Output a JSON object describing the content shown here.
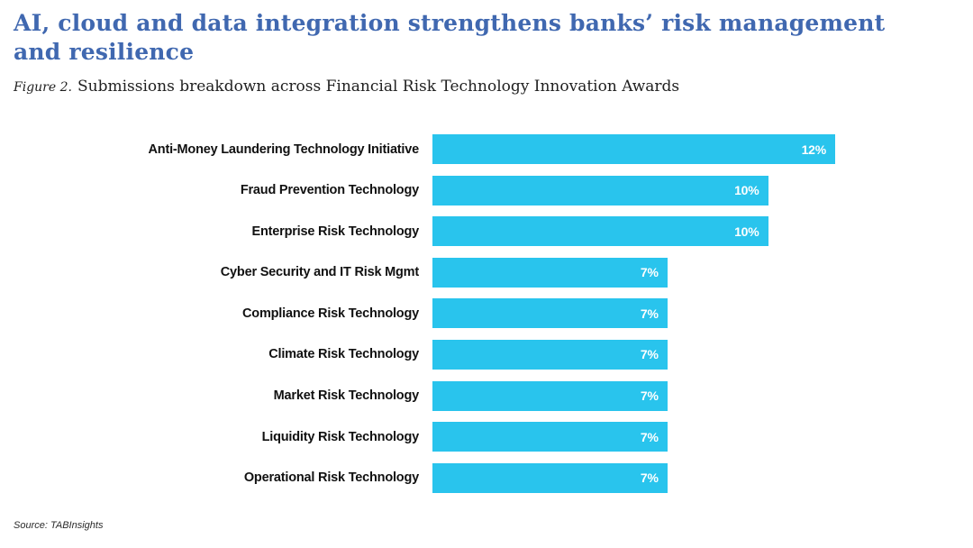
{
  "header": {
    "title_lines": [
      "AI, cloud and data integration strengthens banks’ risk management",
      "and resilience"
    ],
    "figure_label": "Figure 2.",
    "subtitle": "Submissions breakdown across Financial Risk Technology Innovation Awards"
  },
  "chart_data": {
    "type": "bar",
    "orientation": "horizontal",
    "title": "Submissions breakdown across Financial Risk Technology Innovation Awards",
    "categories": [
      "Anti-Money Laundering Technology Initiative",
      "Fraud Prevention Technology",
      "Enterprise Risk Technology",
      "Cyber Security and IT Risk Mgmt",
      "Compliance Risk Technology",
      "Climate Risk Technology",
      "Market Risk Technology",
      "Liquidity Risk Technology",
      "Operational Risk Technology"
    ],
    "values": [
      12,
      10,
      10,
      7,
      7,
      7,
      7,
      7,
      7
    ],
    "value_labels": [
      "12%",
      "10%",
      "10%",
      "7%",
      "7%",
      "7%",
      "7%",
      "7%",
      "7%"
    ],
    "value_max": 12,
    "bar_color": "#29C4ED",
    "value_label_color": "#FFFFFF",
    "grid": false,
    "legend": false
  },
  "footer": {
    "source": "Source: TABInsights"
  }
}
